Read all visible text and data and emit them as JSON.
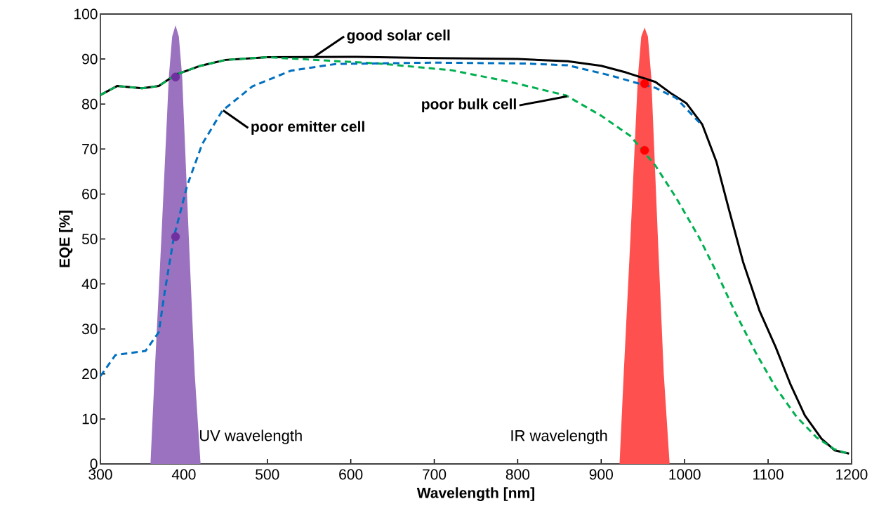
{
  "chart_data": {
    "type": "line",
    "xlabel": "Wavelength [nm]",
    "ylabel": "EQE [%]",
    "xlim": [
      300,
      1200
    ],
    "ylim": [
      0,
      100
    ],
    "xticks": [
      300,
      400,
      500,
      600,
      700,
      800,
      900,
      1000,
      1100,
      1200
    ],
    "yticks": [
      0,
      10,
      20,
      30,
      40,
      50,
      60,
      70,
      80,
      90,
      100
    ],
    "grid": false,
    "series": [
      {
        "type": "area",
        "color": "#9b72bf",
        "x": [
          360,
          365,
          373,
          382,
          386,
          390,
          394,
          398,
          406,
          413,
          420
        ],
        "values": [
          0,
          20,
          50,
          86,
          95,
          97.5,
          95,
          86,
          50,
          20,
          0
        ]
      },
      {
        "type": "area",
        "color": "#ff5050",
        "x": [
          922,
          927,
          935,
          944,
          948,
          952,
          956,
          960,
          968,
          975,
          982
        ],
        "values": [
          0,
          20,
          50,
          86,
          95,
          97,
          95,
          86,
          50,
          20,
          0
        ]
      },
      {
        "color": "#000000",
        "line_style": "solid",
        "x": [
          300,
          320,
          350,
          370,
          390,
          420,
          450,
          500,
          600,
          700,
          800,
          860,
          900,
          930,
          965,
          985,
          1002,
          1021,
          1038,
          1053,
          1070,
          1090,
          1109,
          1127,
          1144,
          1164,
          1180,
          1197
        ],
        "values": [
          82,
          84,
          83.5,
          84,
          86.5,
          88.5,
          89.8,
          90.4,
          90.5,
          90.2,
          90,
          89.5,
          88.5,
          87,
          84.9,
          82.2,
          80.2,
          75.5,
          67.2,
          56.6,
          44.9,
          33.9,
          26,
          17.6,
          10.8,
          5.6,
          3,
          2.3
        ]
      },
      {
        "color": "#00b050",
        "line_style": "dashed",
        "x": [
          300,
          320,
          350,
          370,
          390,
          420,
          450,
          500,
          634,
          721,
          791,
          858,
          900,
          935,
          965,
          990,
          1018,
          1039,
          1060,
          1085,
          1109,
          1134,
          1158,
          1179,
          1197
        ],
        "values": [
          82,
          84,
          83.5,
          84,
          86.5,
          88.5,
          89.8,
          90.4,
          89,
          87.5,
          84.9,
          81.9,
          77.4,
          72.9,
          66.3,
          59.1,
          50.1,
          42.3,
          33.9,
          24.8,
          17,
          10.5,
          5.9,
          3.3,
          2.2
        ]
      },
      {
        "color": "#0070c0",
        "line_style": "dashed",
        "x": [
          300,
          318,
          354,
          370,
          377,
          388,
          404,
          422,
          446,
          482,
          528,
          582,
          700,
          810,
          860,
          910,
          948,
          965,
          990,
          1018
        ],
        "values": [
          19.5,
          24.2,
          25.1,
          29.3,
          38.2,
          50.4,
          61.9,
          71.1,
          78.5,
          83.9,
          87.4,
          88.9,
          89.2,
          89,
          88.6,
          86.4,
          84.4,
          83.6,
          81.3,
          75.8
        ]
      },
      {
        "type": "scatter",
        "color": "#7030a0",
        "x": [
          390,
          390
        ],
        "values": [
          86,
          50.5
        ]
      },
      {
        "type": "scatter",
        "color": "#ff0000",
        "x": [
          952,
          952
        ],
        "values": [
          84.5,
          69.7
        ]
      }
    ],
    "annotations": [
      {
        "text": "good solar cell",
        "x": 556,
        "y": 90.5
      },
      {
        "text": "poor emitter  cell",
        "x": 447,
        "y": 78.6
      },
      {
        "text": "poor bulk cell",
        "x": 859,
        "y": 81.7
      },
      "UV wavelength",
      "IR wavelength"
    ]
  }
}
